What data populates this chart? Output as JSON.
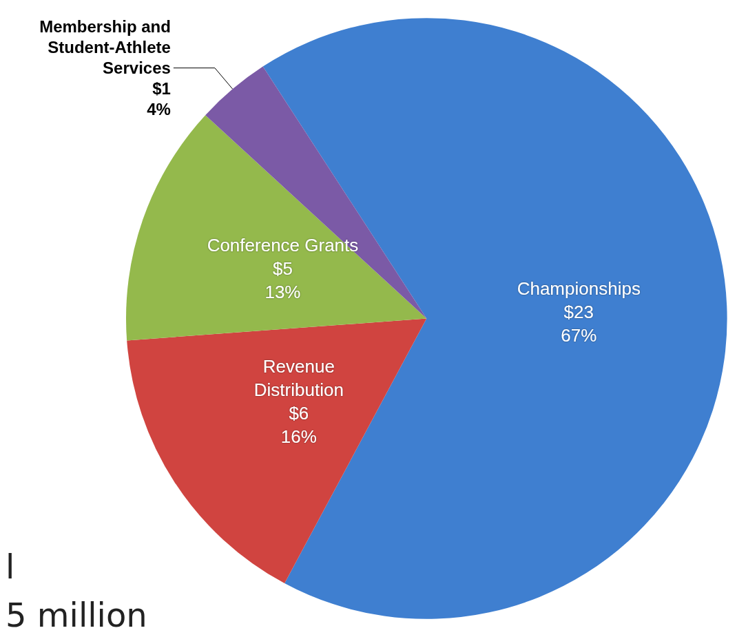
{
  "chart_data": {
    "type": "pie",
    "categories": [
      "Championships",
      "Revenue\nDistribution",
      "Conference Grants",
      "Membership and\nStudent-Athlete\nServices"
    ],
    "values": [
      67,
      16,
      13,
      4
    ],
    "value_labels": [
      "$23\n67%",
      "$6\n16%",
      "$5\n13%",
      "$1\n4%"
    ],
    "colors": [
      "#3f7fd0",
      "#d04440",
      "#94b94c",
      "#7b5aa6"
    ],
    "annotations": [
      "l",
      "5 million"
    ]
  }
}
